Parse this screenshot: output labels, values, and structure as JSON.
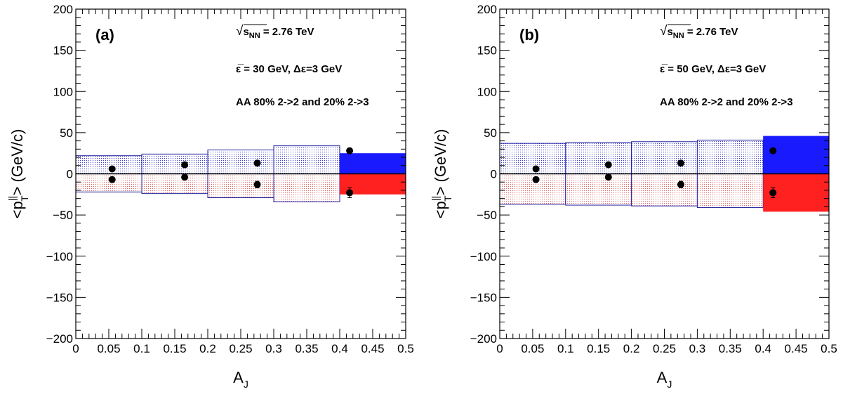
{
  "chart_data": [
    {
      "type": "scatter",
      "panel_label": "(a)",
      "xlabel_main": "A",
      "xlabel_sub": "J",
      "ylabel_pre": "<p",
      "ylabel_sup": "||",
      "ylabel_sub": "T",
      "ylabel_post": "> (GeV/c)",
      "xlim": [
        0,
        0.5
      ],
      "ylim": [
        -200,
        200
      ],
      "x_ticks": [
        0,
        0.05,
        0.1,
        0.15,
        0.2,
        0.25,
        0.3,
        0.35,
        0.4,
        0.45,
        0.5
      ],
      "x_tick_labels": [
        "0",
        "0.05",
        "0.1",
        "0.15",
        "0.2",
        "0.25",
        "0.3",
        "0.35",
        "0.4",
        "0.45",
        "0.5"
      ],
      "y_ticks": [
        -200,
        -150,
        -100,
        -50,
        0,
        50,
        100,
        150,
        200
      ],
      "y_tick_labels": [
        "−200",
        "−150",
        "−100",
        "−50",
        "0",
        "50",
        "100",
        "150",
        "200"
      ],
      "annotations": {
        "sqrt_symbol": "√",
        "energy_var": "s",
        "energy_sub": "NN",
        "energy_value": " = 2.76 TeV",
        "eps_line": "ε̅ = 30 GeV,  Δε=3 GeV",
        "process_line": "AA 80% 2->2 and 20% 2->3"
      },
      "bands": [
        {
          "x0": 0.0,
          "x1": 0.1,
          "upper": 22,
          "lower": -22
        },
        {
          "x0": 0.1,
          "x1": 0.2,
          "upper": 24,
          "lower": -24
        },
        {
          "x0": 0.2,
          "x1": 0.3,
          "upper": 29,
          "lower": -29
        },
        {
          "x0": 0.3,
          "x1": 0.4,
          "upper": 34,
          "lower": -34
        },
        {
          "x0": 0.4,
          "x1": 0.5,
          "upper": 25,
          "lower": -25,
          "solid": true
        }
      ],
      "series": [
        {
          "x": [
            0.055,
            0.165,
            0.275,
            0.415
          ],
          "y": [
            6,
            11,
            13,
            28
          ],
          "yerr": [
            0,
            0,
            0,
            0
          ]
        },
        {
          "x": [
            0.055,
            0.165,
            0.275,
            0.415
          ],
          "y": [
            -7,
            -4,
            -13,
            -23
          ],
          "yerr": [
            0,
            0,
            4,
            6
          ]
        }
      ],
      "colors": {
        "upper_band": "#1a1aff",
        "lower_band": "#ff2020",
        "band_edge": "#2020a0",
        "marker": "#000000"
      }
    },
    {
      "type": "scatter",
      "panel_label": "(b)",
      "xlabel_main": "A",
      "xlabel_sub": "J",
      "ylabel_pre": "<p",
      "ylabel_sup": "||",
      "ylabel_sub": "T",
      "ylabel_post": "> (GeV/c)",
      "xlim": [
        0,
        0.5
      ],
      "ylim": [
        -200,
        200
      ],
      "x_ticks": [
        0,
        0.05,
        0.1,
        0.15,
        0.2,
        0.25,
        0.3,
        0.35,
        0.4,
        0.45,
        0.5
      ],
      "x_tick_labels": [
        "0",
        "0.05",
        "0.1",
        "0.15",
        "0.2",
        "0.25",
        "0.3",
        "0.35",
        "0.4",
        "0.45",
        "0.5"
      ],
      "y_ticks": [
        -200,
        -150,
        -100,
        -50,
        0,
        50,
        100,
        150,
        200
      ],
      "y_tick_labels": [
        "−200",
        "−150",
        "−100",
        "−50",
        "0",
        "50",
        "100",
        "150",
        "200"
      ],
      "annotations": {
        "sqrt_symbol": "√",
        "energy_var": "s",
        "energy_sub": "NN",
        "energy_value": " = 2.76 TeV",
        "eps_line": "ε̅ = 50 GeV,  Δε=3 GeV",
        "process_line": "AA 80% 2->2 and 20% 2->3"
      },
      "bands": [
        {
          "x0": 0.0,
          "x1": 0.1,
          "upper": 37,
          "lower": -37
        },
        {
          "x0": 0.1,
          "x1": 0.2,
          "upper": 38,
          "lower": -38
        },
        {
          "x0": 0.2,
          "x1": 0.3,
          "upper": 39,
          "lower": -39
        },
        {
          "x0": 0.3,
          "x1": 0.4,
          "upper": 41,
          "lower": -41
        },
        {
          "x0": 0.4,
          "x1": 0.5,
          "upper": 46,
          "lower": -46,
          "solid": true
        }
      ],
      "series": [
        {
          "x": [
            0.055,
            0.165,
            0.275,
            0.415
          ],
          "y": [
            6,
            11,
            13,
            28
          ],
          "yerr": [
            0,
            0,
            0,
            0
          ]
        },
        {
          "x": [
            0.055,
            0.165,
            0.275,
            0.415
          ],
          "y": [
            -7,
            -4,
            -13,
            -23
          ],
          "yerr": [
            0,
            0,
            4,
            6
          ]
        }
      ],
      "colors": {
        "upper_band": "#1a1aff",
        "lower_band": "#ff2020",
        "band_edge": "#2020a0",
        "marker": "#000000"
      }
    }
  ]
}
